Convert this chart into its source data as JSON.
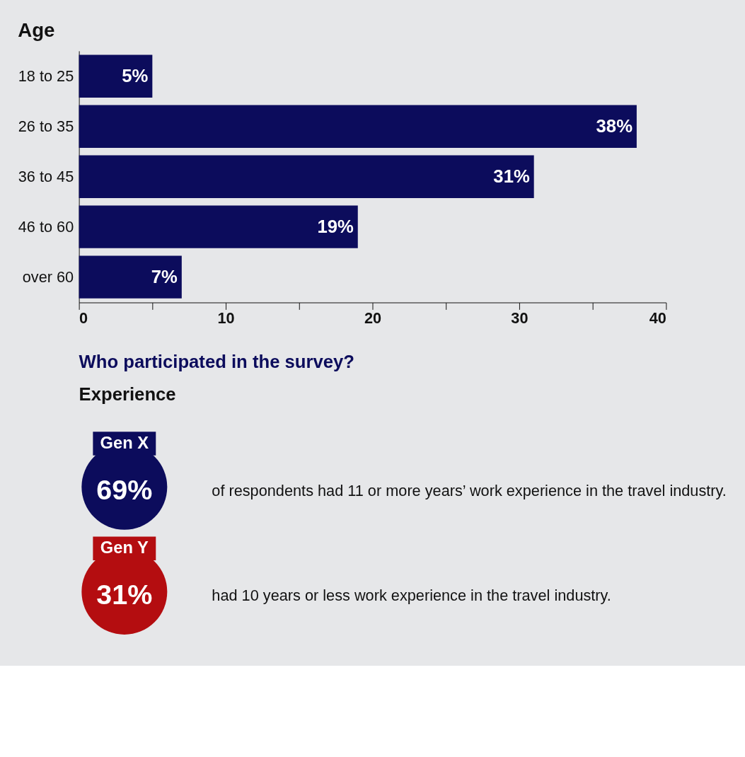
{
  "chart_data": [
    {
      "type": "bar",
      "orientation": "horizontal",
      "title": "Age",
      "categories": [
        "18 to 25",
        "26 to 35",
        "36 to 45",
        "46 to 60",
        "over 60"
      ],
      "values": [
        5,
        38,
        31,
        19,
        7
      ],
      "value_labels": [
        "5%",
        "38%",
        "31%",
        "19%",
        "7%"
      ],
      "color": "#0c0c5c",
      "xlim": [
        0,
        40
      ],
      "xticks": [
        0,
        {
          "value": 5,
          "label": null
        },
        10,
        {
          "value": 15,
          "label": null
        },
        20,
        {
          "value": 25,
          "label": null
        },
        30,
        {
          "value": 35,
          "label": null
        },
        40
      ],
      "grid": false
    },
    {
      "type": "other",
      "title": "Who participated in the survey?",
      "subtitle": "Experience",
      "categories": [
        "Gen X",
        "Gen Y"
      ],
      "values": [
        69,
        31
      ],
      "value_labels": [
        "69%",
        "31%"
      ],
      "colors": [
        "#0c0c5c",
        "#b40d10"
      ],
      "annotations": [
        "of respondents had 11 or more years’ work experience in the travel industry.",
        "had 10 years or less work experience in the travel industry."
      ]
    }
  ]
}
